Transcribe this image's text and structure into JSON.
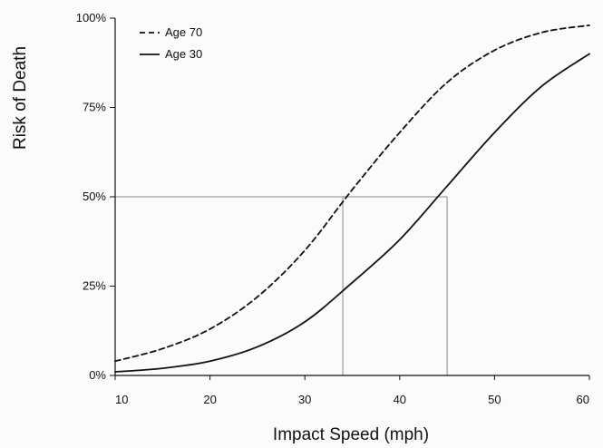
{
  "chart_data": {
    "type": "line",
    "xlabel": "Impact Speed (mph)",
    "ylabel": "Risk of Death",
    "xlim": [
      10,
      60
    ],
    "ylim": [
      0,
      100
    ],
    "x_ticks": [
      10,
      20,
      30,
      40,
      50,
      60
    ],
    "y_ticks": [
      0,
      25,
      50,
      75,
      100
    ],
    "y_tick_labels": [
      "0%",
      "25%",
      "50%",
      "75%",
      "100%"
    ],
    "legend_position": "top-left",
    "grid": false,
    "x": [
      10,
      15,
      20,
      25,
      30,
      35,
      40,
      45,
      50,
      55,
      60
    ],
    "series": [
      {
        "name": "Age 70",
        "line_style": "dashed",
        "values": [
          4,
          7.5,
          13,
          22,
          35,
          52,
          68,
          82,
          91,
          96,
          98
        ]
      },
      {
        "name": "Age 30",
        "line_style": "solid",
        "values": [
          1,
          2,
          4,
          8,
          15,
          26,
          38,
          53,
          68,
          81,
          90
        ]
      }
    ],
    "reference_lines": [
      {
        "horizontal_y": 50,
        "x_from": 10,
        "x_to": 45
      },
      {
        "vertical_x": 34,
        "y_from": 0,
        "y_to": 50
      },
      {
        "vertical_x": 45,
        "y_from": 0,
        "y_to": 50
      }
    ],
    "colors": {
      "line": "#111111",
      "reference": "#8a8a8a"
    }
  }
}
